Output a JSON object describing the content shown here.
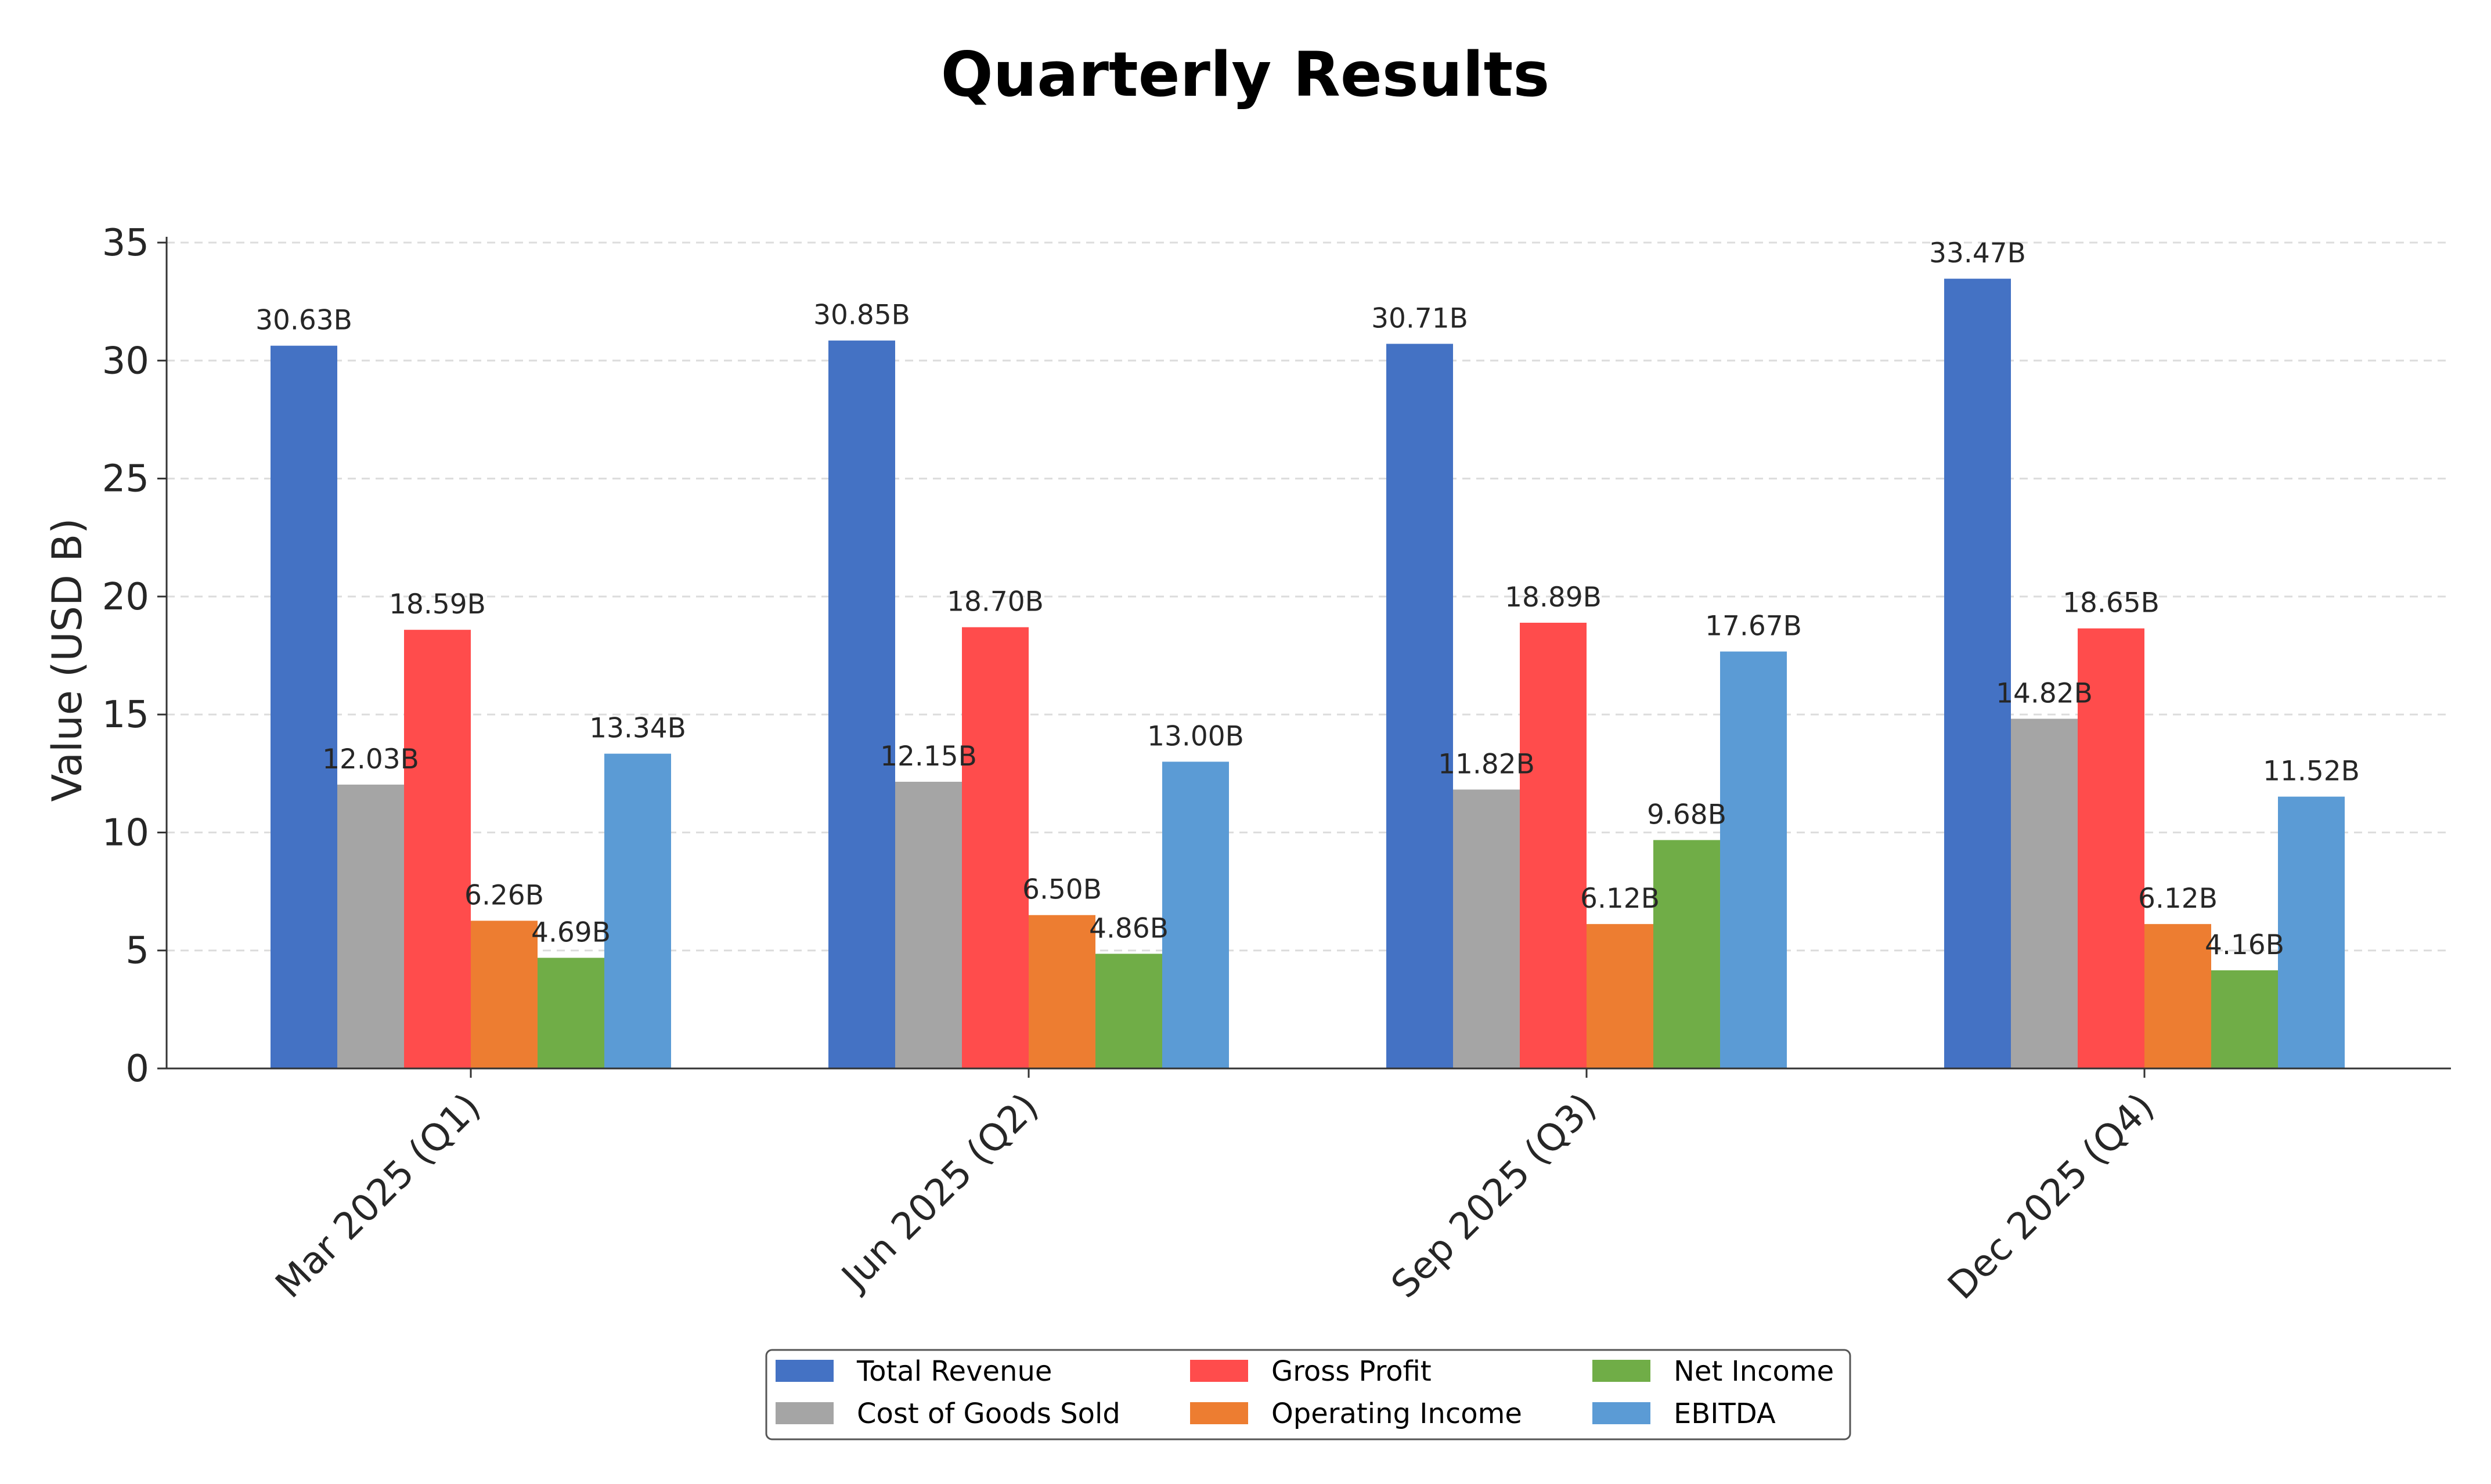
{
  "chart_data": {
    "type": "bar",
    "title": "Quarterly Results",
    "xlabel": "",
    "ylabel": "Value (USD B)",
    "ylim": [
      0,
      35
    ],
    "yticks": [
      0,
      5,
      10,
      15,
      20,
      25,
      30,
      35
    ],
    "grid": "horizontal-dashed",
    "legend_position": "bottom-center",
    "value_suffix": "B",
    "categories": [
      "Mar 2025 (Q1)",
      "Jun 2025 (Q2)",
      "Sep 2025 (Q3)",
      "Dec 2025 (Q4)"
    ],
    "series": [
      {
        "name": "Total Revenue",
        "color": "#4472c4",
        "values": [
          30.63,
          30.85,
          30.71,
          33.47
        ]
      },
      {
        "name": "Cost of Goods Sold",
        "color": "#a5a5a5",
        "values": [
          12.03,
          12.15,
          11.82,
          14.82
        ]
      },
      {
        "name": "Gross Profit",
        "color": "#ff4c4c",
        "values": [
          18.59,
          18.7,
          18.89,
          18.65
        ]
      },
      {
        "name": "Operating Income",
        "color": "#ed7d31",
        "values": [
          6.26,
          6.5,
          6.12,
          6.12
        ]
      },
      {
        "name": "Net Income",
        "color": "#70ad47",
        "values": [
          4.69,
          4.86,
          9.68,
          4.16
        ]
      },
      {
        "name": "EBITDA",
        "color": "#5b9bd5",
        "values": [
          13.34,
          13.0,
          17.67,
          11.52
        ]
      }
    ]
  }
}
